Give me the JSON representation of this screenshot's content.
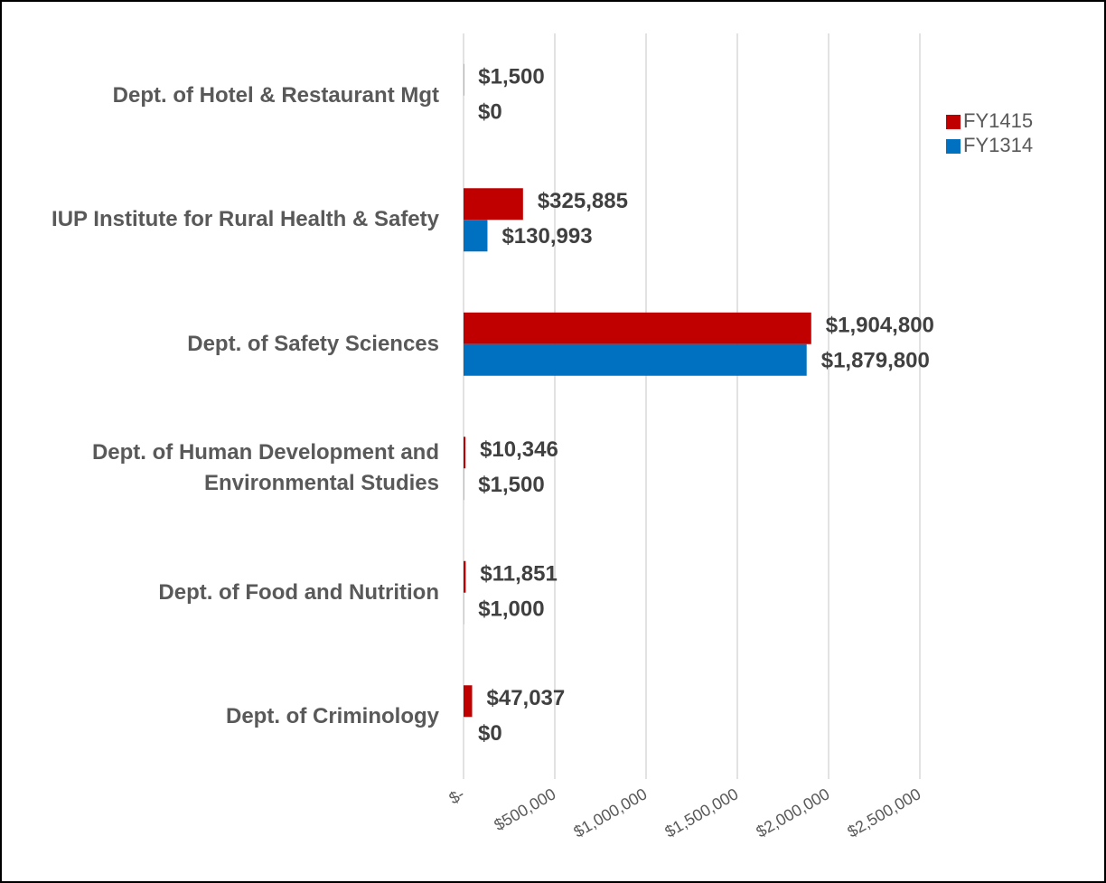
{
  "chart_data": {
    "type": "bar",
    "orientation": "horizontal",
    "categories": [
      "Dept. of Hotel & Restaurant Mgt",
      "IUP Institute for Rural Health & Safety",
      "Dept. of Safety Sciences",
      "Dept. of Human Development and Environmental Studies",
      "Dept. of Food and Nutrition",
      "Dept. of Criminology"
    ],
    "series": [
      {
        "name": "FY1415",
        "color": "#c00000",
        "values": [
          1500,
          325885,
          1904800,
          10346,
          11851,
          47037
        ],
        "value_labels": [
          "$1,500",
          "$325,885",
          "$1,904,800",
          "$10,346",
          "$11,851",
          "$47,037"
        ]
      },
      {
        "name": "FY1314",
        "color": "#0070c0",
        "values": [
          0,
          130993,
          1879800,
          1500,
          1000,
          0
        ],
        "value_labels": [
          "$0",
          "$130,993",
          "$1,879,800",
          "$1,500",
          "$1,000",
          "$0"
        ]
      }
    ],
    "xlim": [
      0,
      2500000
    ],
    "xticks": [
      {
        "value": 0,
        "label": "$-"
      },
      {
        "value": 500000,
        "label": "$500,000"
      },
      {
        "value": 1000000,
        "label": "$1,000,000"
      },
      {
        "value": 1500000,
        "label": "$1,500,000"
      },
      {
        "value": 2000000,
        "label": "$2,000,000"
      },
      {
        "value": 2500000,
        "label": "$2,500,000"
      }
    ],
    "grid": true,
    "legend": "top-right"
  }
}
